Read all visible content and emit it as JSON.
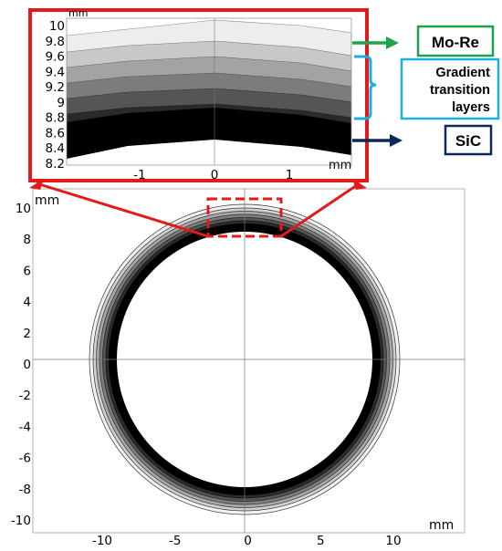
{
  "main_plot": {
    "unit": "mm",
    "x_ticks": [
      "-10",
      "-5",
      "0",
      "5",
      "10"
    ],
    "y_ticks": [
      "10",
      "8",
      "6",
      "4",
      "2",
      "0",
      "-2",
      "-4",
      "-6",
      "-8",
      "-10"
    ]
  },
  "inset": {
    "unit_top": "mm",
    "unit_bottom": "mm",
    "x_ticks": [
      "-1",
      "0",
      "1"
    ],
    "y_ticks": [
      "10",
      "9.8",
      "9.6",
      "9.4",
      "9.2",
      "9",
      "8.8",
      "8.6",
      "8.4",
      "8.2"
    ]
  },
  "labels": {
    "top": "Mo-Re",
    "middle_line1": "Gradient",
    "middle_line2": "transition",
    "middle_line3": "layers",
    "bottom": "SiC"
  },
  "colors": {
    "zoom": "#e31a1c",
    "mo_re": "#1fa34a",
    "gradient": "#1ab0e0",
    "sic": "#0b2a5c"
  }
}
